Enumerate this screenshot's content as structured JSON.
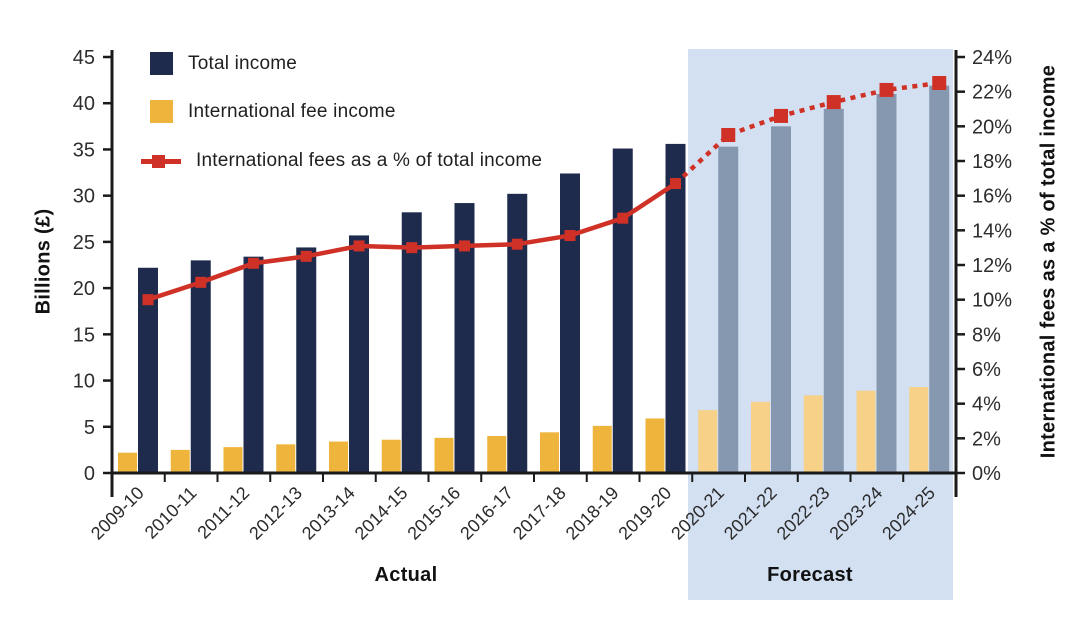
{
  "chart_data": {
    "type": "bar",
    "subtype": "dual-axis combo: grouped bars (left axis) + percentage line (right axis)",
    "categories": [
      "2009-10",
      "2010-11",
      "2011-12",
      "2012-13",
      "2013-14",
      "2014-15",
      "2015-16",
      "2016-17",
      "2017-18",
      "2018-19",
      "2019-20",
      "2020-21",
      "2021-22",
      "2022-23",
      "2023-24",
      "2024-25"
    ],
    "actual_count": 11,
    "forecast_count": 5,
    "series": [
      {
        "name": "Total income",
        "type": "bar",
        "axis": "left",
        "unit": "billions £",
        "values": [
          22.2,
          23.0,
          23.4,
          24.4,
          25.7,
          28.2,
          29.2,
          30.2,
          32.4,
          35.1,
          35.6,
          35.3,
          37.5,
          39.4,
          41.0,
          41.9
        ]
      },
      {
        "name": "International fee income",
        "type": "bar",
        "axis": "left",
        "unit": "billions £",
        "values": [
          2.2,
          2.5,
          2.8,
          3.1,
          3.4,
          3.6,
          3.8,
          4.0,
          4.4,
          5.1,
          5.9,
          6.8,
          7.7,
          8.4,
          8.9,
          9.3
        ]
      },
      {
        "name": "International fees as a % of total income",
        "type": "line",
        "axis": "right",
        "unit": "%",
        "values": [
          10.0,
          11.0,
          12.1,
          12.5,
          13.1,
          13.0,
          13.1,
          13.2,
          13.7,
          14.7,
          16.7,
          19.5,
          20.6,
          21.4,
          22.1,
          22.5
        ]
      }
    ],
    "left_axis": {
      "title": "Billions (£)",
      "min": 0,
      "max": 45,
      "step": 5,
      "tick_labels": [
        "0",
        "5",
        "10",
        "15",
        "20",
        "25",
        "30",
        "35",
        "40",
        "45"
      ]
    },
    "right_axis": {
      "title": "International fees as a % of total income",
      "min": 0,
      "max": 24,
      "step": 2,
      "tick_labels": [
        "0%",
        "2%",
        "4%",
        "6%",
        "8%",
        "10%",
        "12%",
        "14%",
        "16%",
        "18%",
        "20%",
        "22%",
        "24%"
      ]
    },
    "line_style": {
      "actual": "solid",
      "forecast": "dotted"
    },
    "legend_position": "top-left inside plot",
    "grid": false,
    "colors": {
      "total_actual": "#1f2b4d",
      "total_forecast": "#8598b0",
      "fees_actual": "#efb43c",
      "fees_forecast": "#f6d187",
      "pct_line": "#d03127",
      "forecast_shade": "#d3e0f2",
      "axis": "#1a1a1a",
      "tick_text": "#2d2d2d"
    }
  },
  "legend": {
    "items": [
      {
        "label": "Total income"
      },
      {
        "label": "International fee income"
      },
      {
        "label": "International fees as a % of total income"
      }
    ]
  },
  "footer": {
    "actual_label": "Actual",
    "forecast_label": "Forecast"
  }
}
